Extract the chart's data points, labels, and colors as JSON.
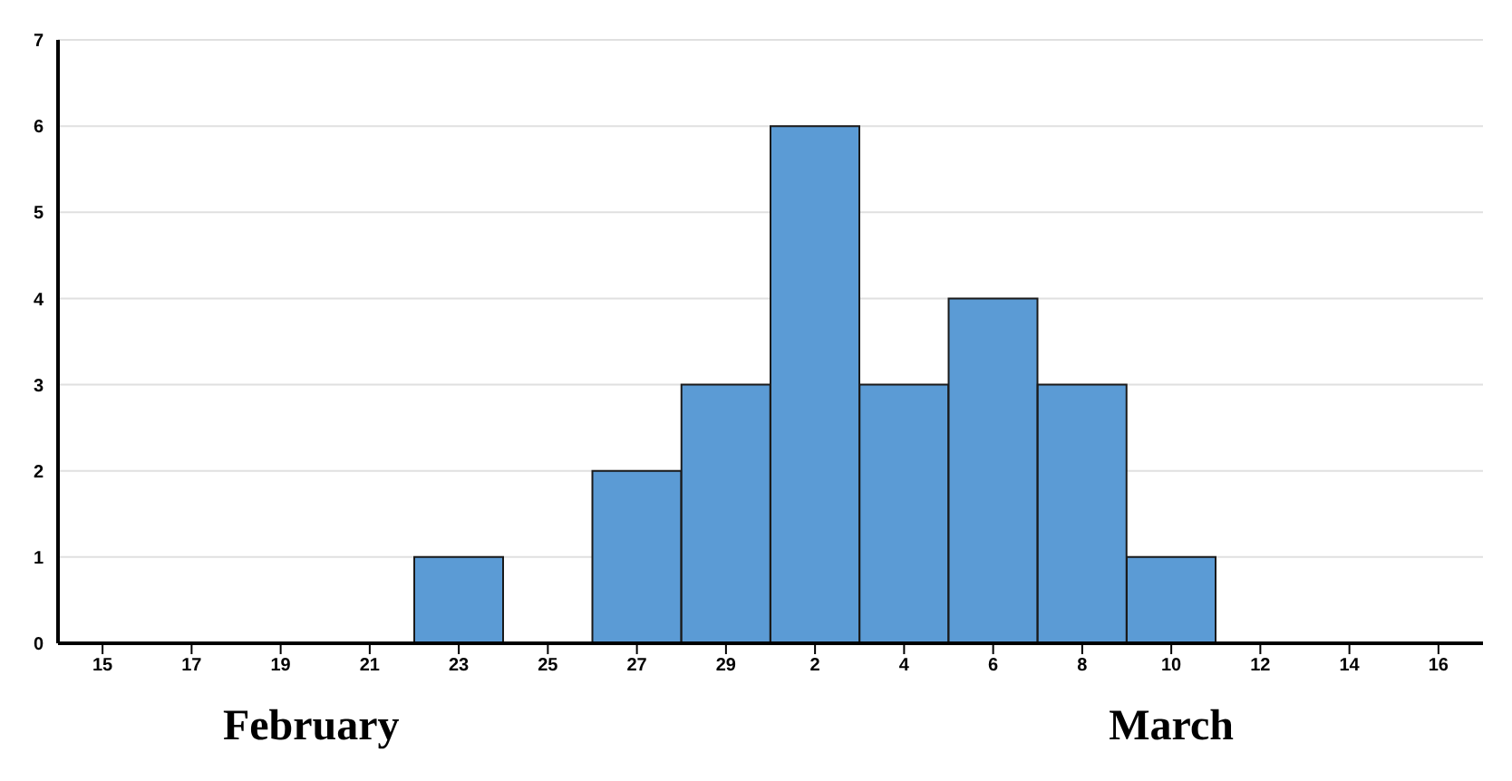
{
  "chart_data": {
    "type": "bar",
    "categories": [
      "15",
      "17",
      "19",
      "21",
      "23",
      "25",
      "27",
      "29",
      "2",
      "4",
      "6",
      "8",
      "10",
      "12",
      "14",
      "16"
    ],
    "values": [
      0,
      0,
      0,
      0,
      1,
      0,
      2,
      3,
      6,
      3,
      4,
      3,
      1,
      0,
      0,
      0
    ],
    "color": "#5b9bd5",
    "ylim": [
      0,
      7
    ],
    "yticks": [
      0,
      1,
      2,
      3,
      4,
      5,
      6,
      7
    ],
    "grid": "y",
    "annotations": [
      "February",
      "March"
    ]
  }
}
